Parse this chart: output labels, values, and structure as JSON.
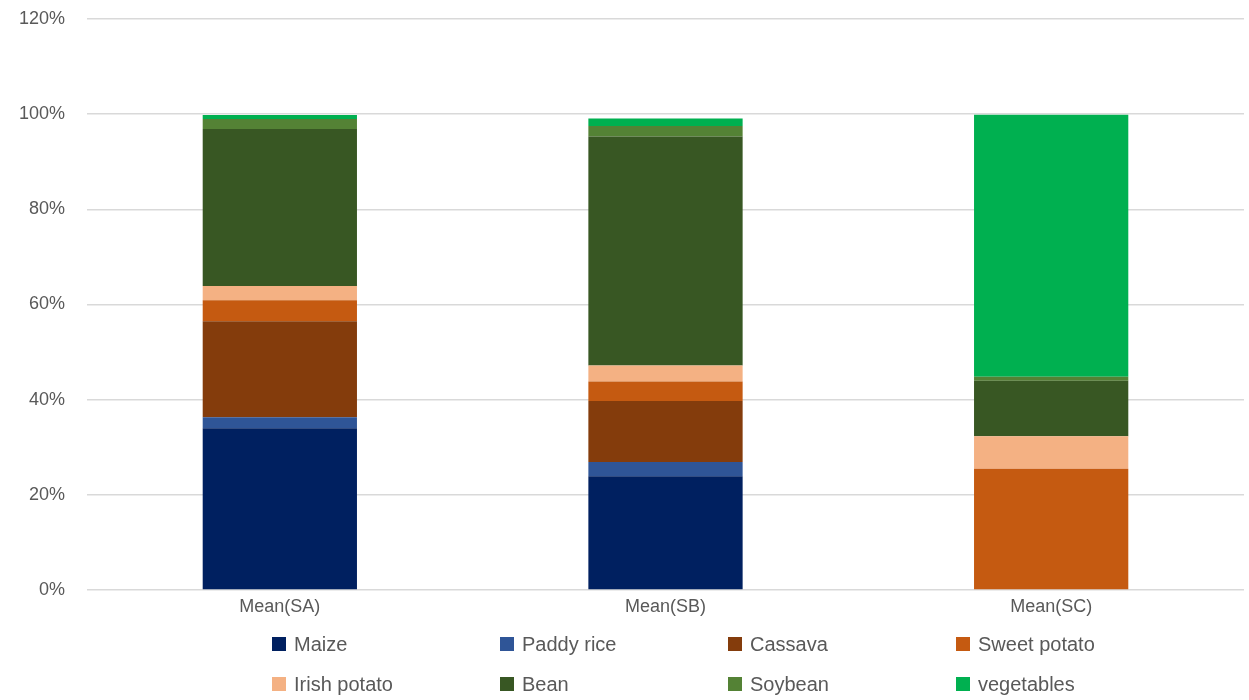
{
  "chart_data": {
    "type": "bar",
    "stacked": true,
    "categories": [
      "Mean(SA)",
      "Mean(SB)",
      "Mean(SC)"
    ],
    "series": [
      {
        "name": "Maize",
        "color": "#002060",
        "values": [
          34.0,
          23.9,
          0
        ]
      },
      {
        "name": "Paddy rice",
        "color": "#2f5597",
        "values": [
          2.3,
          3.0,
          0
        ]
      },
      {
        "name": "Cassava",
        "color": "#843c0c",
        "values": [
          20.2,
          12.8,
          0
        ]
      },
      {
        "name": "Sweet potato",
        "color": "#c55a11",
        "values": [
          4.4,
          4.1,
          25.5
        ]
      },
      {
        "name": "Irish potato",
        "color": "#f4b183",
        "values": [
          3.0,
          3.4,
          6.8
        ]
      },
      {
        "name": "Bean",
        "color": "#385723",
        "values": [
          33.0,
          48.1,
          11.7
        ]
      },
      {
        "name": "Soybean",
        "color": "#548235",
        "values": [
          2.1,
          2.2,
          0.8
        ]
      },
      {
        "name": "vegetables",
        "color": "#00b050",
        "values": [
          0.8,
          1.6,
          55.1
        ]
      }
    ],
    "ylim": [
      0,
      120
    ],
    "yticks": [
      {
        "value": 0,
        "label": "0%"
      },
      {
        "value": 20,
        "label": "20%"
      },
      {
        "value": 40,
        "label": "40%"
      },
      {
        "value": 60,
        "label": "60%"
      },
      {
        "value": 80,
        "label": "80%"
      },
      {
        "value": 100,
        "label": "100%"
      },
      {
        "value": 120,
        "label": "120%"
      }
    ],
    "grid": "y",
    "legend": "bottom"
  }
}
